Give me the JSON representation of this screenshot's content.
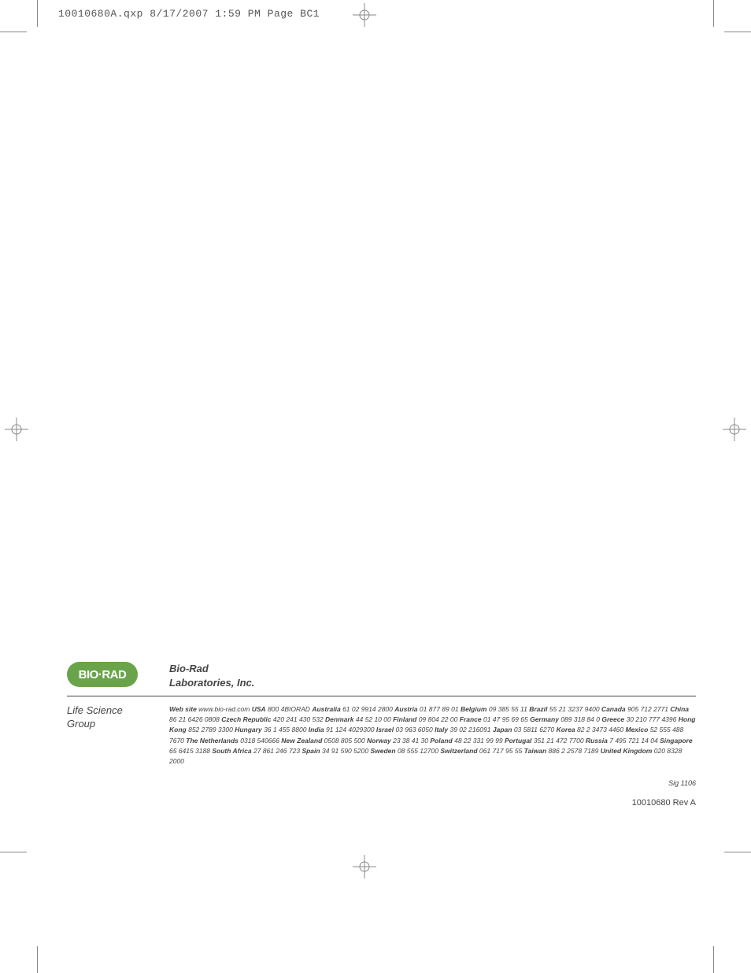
{
  "print_slug": "10010680A.qxp  8/17/2007  1:59 PM  Page BC1",
  "logo": {
    "text": "BIO·RAD",
    "bg_color": "#6aa44a",
    "text_color": "#ffffff"
  },
  "company_name_line1": "Bio-Rad",
  "company_name_line2": "Laboratories, Inc.",
  "group_line1": "Life Science",
  "group_line2": "Group",
  "website_label": "Web site",
  "website_value": "www.bio-rad.com",
  "contacts": [
    {
      "name": "USA",
      "value": "800 4BIORAD"
    },
    {
      "name": "Australia",
      "value": "61 02 9914 2800"
    },
    {
      "name": "Austria",
      "value": "01 877 89 01"
    },
    {
      "name": "Belgium",
      "value": "09 385 55 11"
    },
    {
      "name": "Brazil",
      "value": "55 21 3237 9400"
    },
    {
      "name": "Canada",
      "value": "905 712 2771"
    },
    {
      "name": "China",
      "value": "86 21 6426 0808"
    },
    {
      "name": "Czech Republic",
      "value": "420 241 430 532"
    },
    {
      "name": "Denmark",
      "value": "44 52 10 00"
    },
    {
      "name": "Finland",
      "value": "09 804 22 00"
    },
    {
      "name": "France",
      "value": "01 47 95 69 65"
    },
    {
      "name": "Germany",
      "value": "089 318 84 0"
    },
    {
      "name": "Greece",
      "value": "30 210 777 4396"
    },
    {
      "name": "Hong Kong",
      "value": "852 2789 3300"
    },
    {
      "name": "Hungary",
      "value": "36 1 455 8800"
    },
    {
      "name": "India",
      "value": "91 124 4029300"
    },
    {
      "name": "Israel",
      "value": "03 963 6050"
    },
    {
      "name": "Italy",
      "value": "39 02 216091"
    },
    {
      "name": "Japan",
      "value": "03 5811 6270"
    },
    {
      "name": "Korea",
      "value": "82 2 3473 4460"
    },
    {
      "name": "Mexico",
      "value": "52 555 488 7670"
    },
    {
      "name": "The Netherlands",
      "value": "0318 540666"
    },
    {
      "name": "New Zealand",
      "value": "0508 805 500"
    },
    {
      "name": "Norway",
      "value": "23 38 41 30"
    },
    {
      "name": "Poland",
      "value": "48 22 331 99 99"
    },
    {
      "name": "Portugal",
      "value": "351 21 472 7700"
    },
    {
      "name": "Russia",
      "value": "7 495 721 14 04"
    },
    {
      "name": "Singapore",
      "value": "65 6415 3188"
    },
    {
      "name": "South Africa",
      "value": "27 861 246 723"
    },
    {
      "name": "Spain",
      "value": "34 91 590 5200"
    },
    {
      "name": "Sweden",
      "value": "08 555 12700"
    },
    {
      "name": "Switzerland",
      "value": "061 717 95 55"
    },
    {
      "name": "Taiwan",
      "value": "886 2 2578 7189"
    },
    {
      "name": "United Kingdom",
      "value": "020 8328 2000"
    }
  ],
  "sig": "Sig 1106",
  "rev": "10010680 Rev A"
}
